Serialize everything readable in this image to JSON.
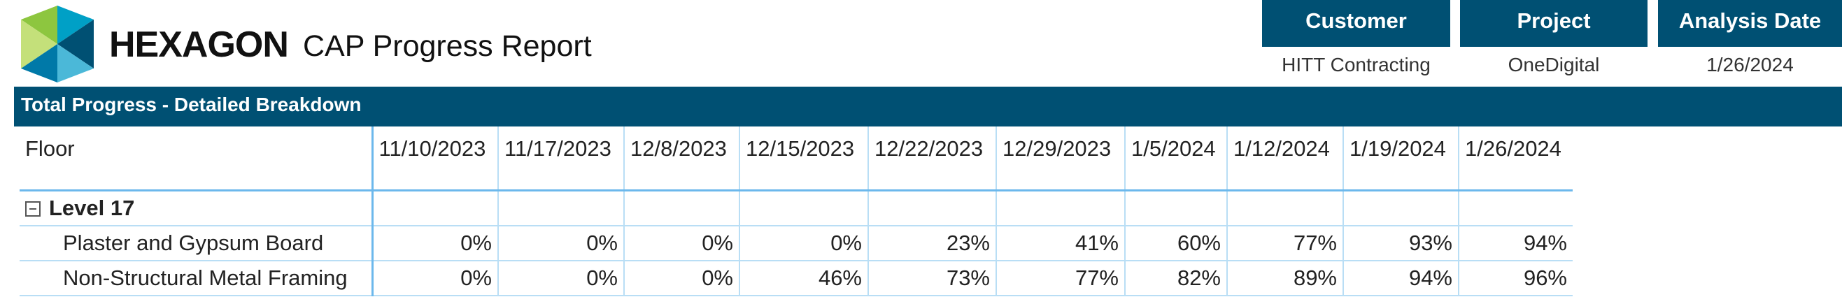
{
  "header": {
    "brand": "HEXAGON",
    "title": "CAP Progress Report",
    "info": [
      {
        "label": "Customer",
        "value": "HITT Contracting"
      },
      {
        "label": "Project",
        "value": "OneDigital"
      },
      {
        "label": "Analysis Date",
        "value": "1/26/2024"
      }
    ]
  },
  "banner": "Total Progress - Detailed Breakdown",
  "table": {
    "columns": [
      "Floor",
      "11/10/2023",
      "11/17/2023",
      "12/8/2023",
      "12/15/2023",
      "12/22/2023",
      "12/29/2023",
      "1/5/2024",
      "1/12/2024",
      "1/19/2024",
      "1/26/2024"
    ],
    "groups": [
      {
        "name": "Level 17",
        "rows": [
          {
            "label": "Plaster and Gypsum Board",
            "values": [
              "0%",
              "0%",
              "0%",
              "0%",
              "23%",
              "41%",
              "60%",
              "77%",
              "93%",
              "94%"
            ]
          },
          {
            "label": "Non-Structural Metal Framing",
            "values": [
              "0%",
              "0%",
              "0%",
              "46%",
              "73%",
              "77%",
              "82%",
              "89%",
              "94%",
              "96%"
            ]
          }
        ]
      }
    ]
  }
}
